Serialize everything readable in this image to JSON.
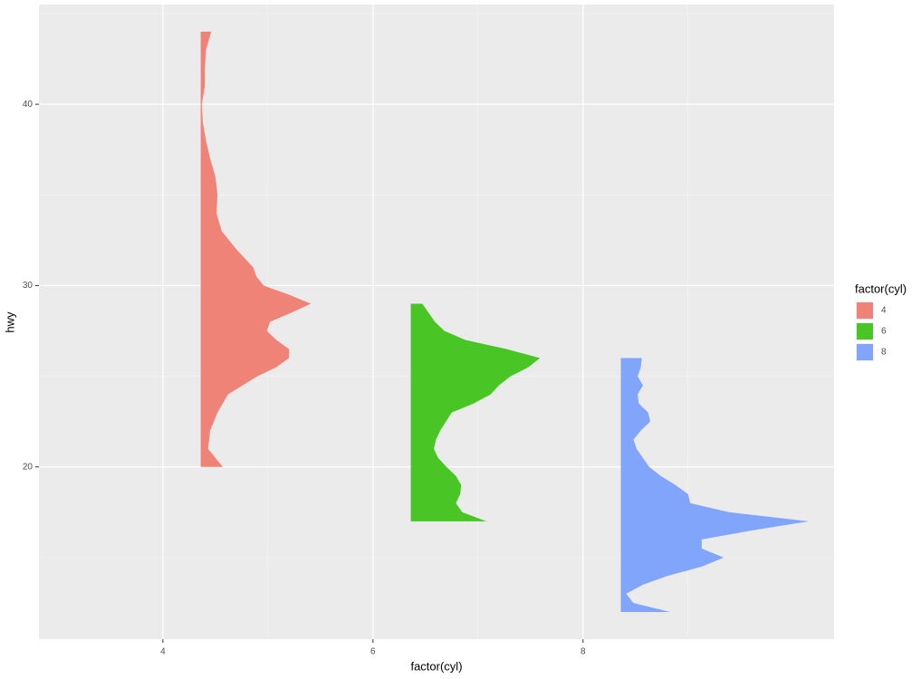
{
  "chart_data": {
    "type": "half-violin",
    "x_label": "factor(cyl)",
    "y_label": "hwy",
    "legend_title": "factor(cyl)",
    "legend_position": "right",
    "grid": true,
    "xlim": [
      2.82,
      10.39
    ],
    "ylim": [
      10.5,
      45.5
    ],
    "xticks": [
      4,
      6,
      8
    ],
    "yticks": [
      20,
      30,
      40
    ],
    "xminorticks": [
      5,
      7,
      9
    ],
    "yminorticks": [
      15,
      25,
      35,
      45
    ],
    "series": [
      {
        "name": "4",
        "color": "#f08377",
        "base": 4.36,
        "y": [
          44,
          43,
          42,
          41,
          40,
          39,
          38,
          37,
          36,
          35,
          34,
          33,
          32,
          31,
          30.5,
          30,
          29.5,
          29,
          28.5,
          28,
          27.5,
          27,
          26.5,
          26,
          25.5,
          25,
          24,
          23,
          22,
          21,
          20.5,
          20
        ],
        "width": [
          0.1,
          0.05,
          0.04,
          0.04,
          0.01,
          0.02,
          0.05,
          0.09,
          0.14,
          0.16,
          0.15,
          0.2,
          0.34,
          0.5,
          0.53,
          0.6,
          0.84,
          1.05,
          0.86,
          0.66,
          0.63,
          0.72,
          0.84,
          0.84,
          0.72,
          0.54,
          0.26,
          0.16,
          0.09,
          0.07,
          0.14,
          0.21
        ]
      },
      {
        "name": "6",
        "color": "#49c526",
        "base": 6.36,
        "y": [
          29,
          28.5,
          28,
          27.5,
          27,
          26.5,
          26,
          25.5,
          25,
          24.5,
          24,
          23.5,
          23,
          22,
          21.5,
          21,
          20.5,
          20,
          19.5,
          19,
          18.5,
          18,
          17.5,
          17
        ],
        "width": [
          0.11,
          0.17,
          0.23,
          0.32,
          0.52,
          0.91,
          1.23,
          1.12,
          0.95,
          0.84,
          0.76,
          0.6,
          0.39,
          0.28,
          0.24,
          0.22,
          0.26,
          0.34,
          0.43,
          0.48,
          0.47,
          0.43,
          0.49,
          0.72
        ]
      },
      {
        "name": "8",
        "color": "#82a5fc",
        "base": 8.36,
        "y": [
          26,
          25.5,
          25,
          24.5,
          24,
          23.5,
          23,
          22.5,
          22,
          21.5,
          21,
          20.5,
          20,
          19.5,
          19,
          18.5,
          18,
          17.5,
          17,
          16.5,
          16,
          15.5,
          15,
          14.5,
          14,
          13.5,
          13,
          12.5,
          12
        ],
        "width": [
          0.2,
          0.19,
          0.16,
          0.21,
          0.16,
          0.17,
          0.26,
          0.28,
          0.19,
          0.12,
          0.15,
          0.21,
          0.27,
          0.38,
          0.52,
          0.64,
          0.66,
          1.03,
          1.79,
          1.25,
          0.77,
          0.77,
          0.98,
          0.77,
          0.45,
          0.21,
          0.05,
          0.12,
          0.47
        ]
      }
    ]
  }
}
